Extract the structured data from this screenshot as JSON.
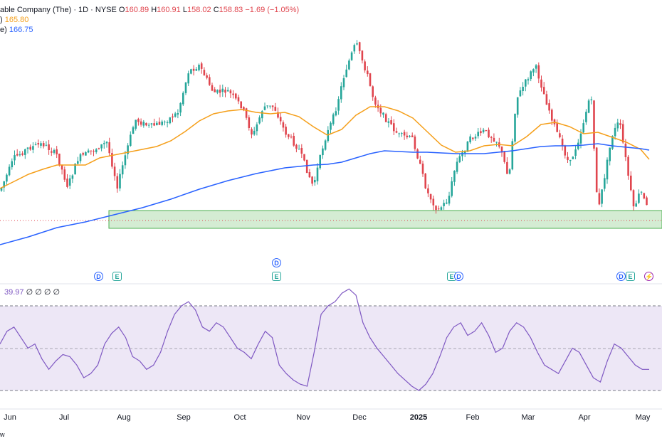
{
  "legend": {
    "title": "able Company (The) · 1D · NYSE",
    "open_label": "O",
    "open": "160.89",
    "high_label": "H",
    "high": "160.91",
    "low_label": "L",
    "low": "158.02",
    "close_label": "C",
    "close": "158.83",
    "change": "−1.69 (−1.05%)",
    "ma1_label": ")",
    "ma1_value": "165.80",
    "ma2_label": "e)",
    "ma2_value": "166.75"
  },
  "rsi_legend": {
    "value": "39.97",
    "extra": "∅ ∅ ∅ ∅"
  },
  "x_labels": [
    {
      "text": "Jun",
      "bold": false
    },
    {
      "text": "Jul",
      "bold": false
    },
    {
      "text": "Aug",
      "bold": false
    },
    {
      "text": "Sep",
      "bold": false
    },
    {
      "text": "Oct",
      "bold": false
    },
    {
      "text": "Nov",
      "bold": false
    },
    {
      "text": "Dec",
      "bold": false
    },
    {
      "text": "2025",
      "bold": true
    },
    {
      "text": "Feb",
      "bold": false
    },
    {
      "text": "Mar",
      "bold": false
    },
    {
      "text": "Apr",
      "bold": false
    },
    {
      "text": "May",
      "bold": false
    }
  ],
  "events": [
    {
      "type": "dividend",
      "label": "D"
    },
    {
      "type": "earnings",
      "label": "E"
    },
    {
      "type": "dividend",
      "label": "D"
    },
    {
      "type": "earnings",
      "label": "E"
    },
    {
      "type": "earnings",
      "label": "E"
    },
    {
      "type": "dividend",
      "label": "D"
    },
    {
      "type": "dividend",
      "label": "D"
    },
    {
      "type": "earnings",
      "label": "E"
    },
    {
      "type": "flash",
      "label": "⚡"
    }
  ],
  "footer": "w",
  "colors": {
    "up": "#26a69a",
    "down": "#e0454e",
    "ma_fast": "#f59f1a",
    "ma_slow": "#2962ff",
    "rsi": "#7e57c2",
    "rsi_band": "#ede7f6",
    "zone_fill": "#d4ecd3",
    "zone_border": "#4caf50"
  },
  "chart_data": {
    "type": "candlestick",
    "price_range": [
      135,
      178
    ],
    "support_zone": [
      150,
      153.5
    ],
    "rsi": {
      "upper": 70,
      "middle": 50,
      "lower": 30,
      "last": 39.97,
      "values": [
        52,
        58,
        60,
        55,
        50,
        52,
        45,
        40,
        44,
        47,
        46,
        42,
        36,
        38,
        42,
        52,
        57,
        60,
        55,
        46,
        44,
        40,
        42,
        48,
        58,
        66,
        70,
        72,
        68,
        60,
        58,
        62,
        60,
        55,
        50,
        48,
        45,
        52,
        58,
        55,
        42,
        38,
        35,
        33,
        32,
        48,
        66,
        70,
        72,
        76,
        78,
        75,
        62,
        55,
        50,
        46,
        42,
        38,
        35,
        32,
        30,
        33,
        38,
        46,
        55,
        60,
        62,
        56,
        58,
        62,
        56,
        48,
        50,
        58,
        62,
        60,
        55,
        48,
        42,
        40,
        38,
        44,
        50,
        48,
        42,
        36,
        34,
        44,
        52,
        50,
        46,
        42,
        40,
        39.97
      ]
    }
  }
}
